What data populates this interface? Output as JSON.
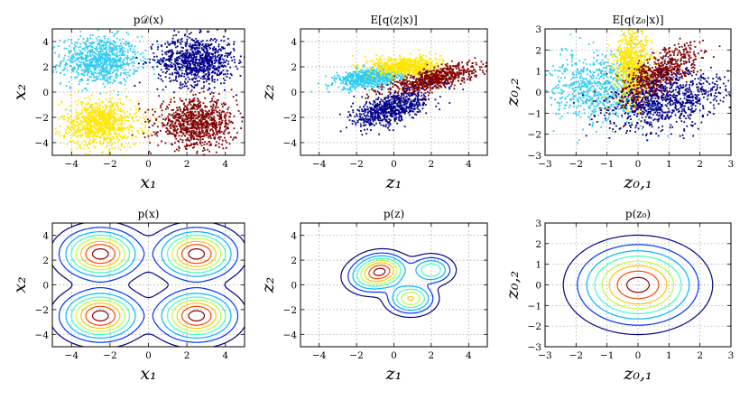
{
  "figure": {
    "palette": {
      "cyan": "#33ccf0",
      "navy": "#00008b",
      "yellow": "#ffe600",
      "darkred": "#800000"
    },
    "contour_colors": [
      "#00007f",
      "#0030ff",
      "#00b4ff",
      "#3dffb9",
      "#b9ff3d",
      "#ffc400",
      "#ff4000",
      "#8b0000"
    ]
  },
  "chart_data": [
    {
      "type": "scatter",
      "title": "p𝒟(x)",
      "xlabel": "x₁",
      "ylabel": "x₂",
      "xlim": [
        -5,
        5
      ],
      "ylim": [
        -5,
        5
      ],
      "xticks": [
        -4,
        -2,
        0,
        2,
        4
      ],
      "yticks": [
        -4,
        -2,
        0,
        2,
        4
      ],
      "grid": true,
      "series": [
        {
          "name": "cluster-top-left",
          "color": "cyan",
          "center": [
            -2.5,
            2.5
          ],
          "spread": [
            1.0,
            0.95
          ],
          "angle": 0,
          "count": 900
        },
        {
          "name": "cluster-top-right",
          "color": "navy",
          "center": [
            2.5,
            2.5
          ],
          "spread": [
            1.0,
            0.95
          ],
          "angle": 0,
          "count": 900
        },
        {
          "name": "cluster-bottom-left",
          "color": "yellow",
          "center": [
            -2.5,
            -2.5
          ],
          "spread": [
            1.0,
            0.95
          ],
          "angle": 0,
          "count": 900
        },
        {
          "name": "cluster-bottom-right",
          "color": "darkred",
          "center": [
            2.5,
            -2.5
          ],
          "spread": [
            1.0,
            0.95
          ],
          "angle": 0,
          "count": 900
        }
      ]
    },
    {
      "type": "scatter",
      "title": "E[q(z|x)]",
      "xlabel": "z₁",
      "ylabel": "z₂",
      "xlim": [
        -5,
        5
      ],
      "ylim": [
        -5,
        5
      ],
      "xticks": [
        -4,
        -2,
        0,
        2,
        4
      ],
      "yticks": [
        -4,
        -2,
        0,
        2,
        4
      ],
      "grid": true,
      "series": [
        {
          "name": "cyan-points",
          "color": "cyan",
          "center": [
            -1.3,
            1.1
          ],
          "spread": [
            0.9,
            0.35
          ],
          "angle": 10,
          "count": 700
        },
        {
          "name": "yellow-points",
          "color": "yellow",
          "center": [
            0.7,
            2.0
          ],
          "spread": [
            0.9,
            0.4
          ],
          "angle": 0,
          "count": 700
        },
        {
          "name": "darkred-points",
          "color": "darkred",
          "center": [
            2.0,
            1.0
          ],
          "spread": [
            1.3,
            0.4
          ],
          "angle": 22,
          "count": 700
        },
        {
          "name": "navy-points",
          "color": "navy",
          "center": [
            -0.1,
            -1.3
          ],
          "spread": [
            1.1,
            0.55
          ],
          "angle": 30,
          "count": 700
        }
      ]
    },
    {
      "type": "scatter",
      "title": "E[q(z₀|x)]",
      "xlabel": "z₀,₁",
      "ylabel": "z₀,₂",
      "xlim": [
        -3,
        3
      ],
      "ylim": [
        -3,
        3
      ],
      "xticks": [
        -3,
        -2,
        -1,
        0,
        1,
        2,
        3
      ],
      "yticks": [
        -3,
        -2,
        -1,
        0,
        1,
        2,
        3
      ],
      "grid": true,
      "series": [
        {
          "name": "cyan-points",
          "color": "cyan",
          "center": [
            -1.2,
            0.2
          ],
          "spread": [
            0.8,
            0.8
          ],
          "angle": 0,
          "count": 800
        },
        {
          "name": "yellow-points",
          "color": "yellow",
          "center": [
            -0.15,
            1.2
          ],
          "spread": [
            0.3,
            0.9
          ],
          "angle": 0,
          "count": 700
        },
        {
          "name": "darkred-points",
          "color": "darkred",
          "center": [
            0.7,
            0.8
          ],
          "spread": [
            0.9,
            0.35
          ],
          "angle": 50,
          "count": 700
        },
        {
          "name": "navy-points",
          "color": "navy",
          "center": [
            1.0,
            -0.4
          ],
          "spread": [
            1.0,
            0.6
          ],
          "angle": 25,
          "count": 800
        }
      ]
    },
    {
      "type": "contour",
      "title": "p(x)",
      "xlabel": "x₁",
      "ylabel": "x₂",
      "xlim": [
        -5,
        5
      ],
      "ylim": [
        -5,
        5
      ],
      "xticks": [
        -4,
        -2,
        0,
        2,
        4
      ],
      "yticks": [
        -4,
        -2,
        0,
        2,
        4
      ],
      "grid": true,
      "components": [
        {
          "center": [
            -2.5,
            2.5
          ],
          "sigma": 1.0,
          "weight": 1
        },
        {
          "center": [
            2.5,
            2.5
          ],
          "sigma": 1.0,
          "weight": 1
        },
        {
          "center": [
            -2.5,
            -2.5
          ],
          "sigma": 1.0,
          "weight": 1
        },
        {
          "center": [
            2.5,
            -2.5
          ],
          "sigma": 1.0,
          "weight": 1
        }
      ],
      "levels": [
        0.03,
        0.1,
        0.2,
        0.32,
        0.45,
        0.6,
        0.75,
        0.92
      ]
    },
    {
      "type": "contour",
      "title": "p(z)",
      "xlabel": "z₁",
      "ylabel": "z₂",
      "xlim": [
        -5,
        5
      ],
      "ylim": [
        -5,
        5
      ],
      "xticks": [
        -4,
        -2,
        0,
        2,
        4
      ],
      "yticks": [
        -4,
        -2,
        0,
        2,
        4
      ],
      "grid": true,
      "components": [
        {
          "center": [
            -0.6,
            1.2
          ],
          "sigma": 0.7,
          "weight": 1.0
        },
        {
          "center": [
            0.9,
            -1.1
          ],
          "sigma": 0.65,
          "weight": 0.8
        },
        {
          "center": [
            2.0,
            1.2
          ],
          "sigma": 0.6,
          "weight": 0.6
        },
        {
          "center": [
            -1.3,
            0.6
          ],
          "sigma": 0.7,
          "weight": 0.5
        }
      ],
      "levels": [
        0.04,
        0.12,
        0.22,
        0.34,
        0.48,
        0.62,
        0.78,
        0.93
      ]
    },
    {
      "type": "contour",
      "title": "p(z₀)",
      "xlabel": "z₀,₁",
      "ylabel": "z₀,₂",
      "xlim": [
        -3,
        3
      ],
      "ylim": [
        -3,
        3
      ],
      "xticks": [
        -3,
        -2,
        -1,
        0,
        1,
        2,
        3
      ],
      "yticks": [
        -3,
        -2,
        -1,
        0,
        1,
        2,
        3
      ],
      "grid": true,
      "components": [
        {
          "center": [
            0.0,
            0.0
          ],
          "sigma": 0.95,
          "weight": 1
        }
      ],
      "levels": [
        0.04,
        0.12,
        0.22,
        0.34,
        0.48,
        0.62,
        0.78,
        0.93
      ]
    }
  ]
}
